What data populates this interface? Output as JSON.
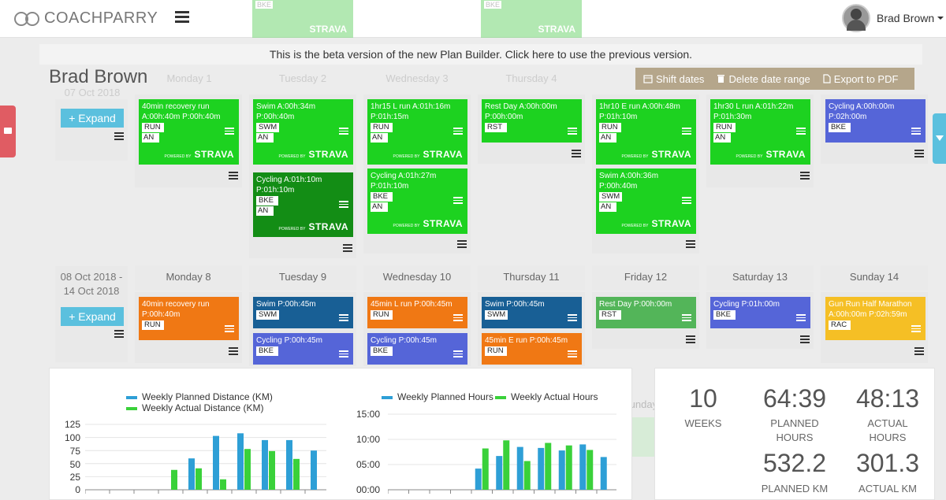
{
  "header": {
    "brand": "COACHPARRY",
    "user": "Brad Brown"
  },
  "banner": "This is the beta version of the new Plan Builder. Click here to use the previous version.",
  "page_title": "Brad Brown",
  "toolbar": {
    "shift": "Shift dates",
    "delete": "Delete date range",
    "export": "Export to PDF"
  },
  "ghost": {
    "days": [
      "Monday 1",
      "Tuesday 2",
      "Wednesday 3",
      "Thursday 4"
    ],
    "date": "07 Oct 2018",
    "tag": "BKE",
    "sunday": "Sunday",
    "strava": "STRAVA"
  },
  "week1": {
    "expand": "Expand",
    "workouts": {
      "mon1": {
        "title": "40min recovery run",
        "line2": "A:00h:40m P:00h:40m",
        "tag": "RUN",
        "tag2": "AN"
      },
      "tue1": {
        "title": "Swim A:00h:34m",
        "line2": "P:00h:40m",
        "tag": "SWM",
        "tag2": "AN"
      },
      "tue2": {
        "title": "Cycling A:01h:10m",
        "line2": "P:01h:10m",
        "tag": "BKE",
        "tag2": "AN"
      },
      "wed1": {
        "title": "1hr15 L run A:01h:16m",
        "line2": "P:01h:15m",
        "tag": "RUN",
        "tag2": "AN"
      },
      "wed2": {
        "title": "Cycling A:01h:27m",
        "line2": "P:01h:10m",
        "tag": "BKE",
        "tag2": "AN"
      },
      "thu1": {
        "title": "Rest Day A:00h:00m",
        "line2": "P:00h:00m",
        "tag": "RST"
      },
      "fri1": {
        "title": "1hr10 E run A:00h:48m",
        "line2": "P:01h:10m",
        "tag": "RUN",
        "tag2": "AN"
      },
      "fri2": {
        "title": "Swim A:00h:36m",
        "line2": "P:00h:40m",
        "tag": "SWM",
        "tag2": "AN"
      },
      "sat1": {
        "title": "1hr30 L run A:01h:22m",
        "line2": "P:01h:30m",
        "tag": "RUN",
        "tag2": "AN"
      },
      "sun1": {
        "title": "Cycling A:00h:00m",
        "line2": "P:02h:00m",
        "tag": "BKE"
      }
    },
    "strava": "STRAVA",
    "powered": "POWERED BY"
  },
  "week2": {
    "range_start": "08 Oct 2018 -",
    "range_end": "14 Oct 2018",
    "expand": "Expand",
    "days": [
      "Monday 8",
      "Tuesday 9",
      "Wednesday 10",
      "Thursday 11",
      "Friday 12",
      "Saturday 13",
      "Sunday 14"
    ],
    "workouts": {
      "mon1": {
        "title": "40min recovery run",
        "line2": "P:00h:40m",
        "tag": "RUN"
      },
      "tue1": {
        "title": "Swim P:00h:45m",
        "tag": "SWM"
      },
      "tue2": {
        "title": "Cycling P:00h:45m",
        "tag": "BKE"
      },
      "wed1": {
        "title": "45min L run P:00h:45m",
        "tag": "RUN"
      },
      "wed2": {
        "title": "Cycling P:00h:45m",
        "tag": "BKE"
      },
      "thu1": {
        "title": "Swim P:00h:45m",
        "tag": "SWM"
      },
      "thu2": {
        "title": "45min E run P:00h:45m",
        "tag": "RUN"
      },
      "fri1": {
        "title": "Rest Day P:00h:00m",
        "tag": "RST"
      },
      "sat1": {
        "title": "Cycling P:01h:00m",
        "tag": "BKE"
      },
      "sun1": {
        "title": "Gun Run Half Marathon",
        "line2": "A:00h:00m P:02h:59m",
        "tag": "RAC"
      }
    }
  },
  "chart_data": [
    {
      "type": "bar",
      "title": "",
      "series": [
        {
          "name": "Weekly Planned Distance (KM)",
          "color": "#2e9fd6",
          "values": [
            0,
            0,
            0,
            0,
            60,
            103,
            108,
            95,
            95,
            75
          ]
        },
        {
          "name": "Weekly Actual Distance (KM)",
          "color": "#3ad13a",
          "values": [
            0,
            0,
            0,
            38,
            41,
            20,
            78,
            74,
            59,
            0
          ]
        }
      ],
      "yticks": [
        "125",
        "100",
        "75",
        "50",
        "25",
        "0"
      ],
      "ylim": [
        0,
        125
      ]
    },
    {
      "type": "bar",
      "title": "",
      "series": [
        {
          "name": "Weekly Planned Hours",
          "color": "#2e9fd6",
          "values": [
            0,
            0,
            0,
            0,
            4.2,
            6.7,
            8.5,
            8.3,
            7.8,
            9,
            6.5
          ]
        },
        {
          "name": "Weekly Actual Hours",
          "color": "#3ad13a",
          "values": [
            0,
            0,
            0,
            0,
            8.2,
            9.8,
            5.7,
            9.3,
            8.8,
            7.9,
            0
          ]
        }
      ],
      "yticks": [
        "15:00",
        "10:00",
        "05:00",
        "00:00"
      ],
      "ylim": [
        0,
        15
      ]
    }
  ],
  "stats": {
    "weeks": {
      "value": "10",
      "label": "WEEKS"
    },
    "planned_hours": {
      "value": "64:39",
      "label1": "PLANNED",
      "label2": "HOURS"
    },
    "actual_hours": {
      "value": "48:13",
      "label1": "ACTUAL",
      "label2": "HOURS"
    },
    "planned_km": {
      "value": "532.2",
      "label": "PLANNED KM"
    },
    "actual_km": {
      "value": "301.3",
      "label": "ACTUAL KM"
    }
  }
}
